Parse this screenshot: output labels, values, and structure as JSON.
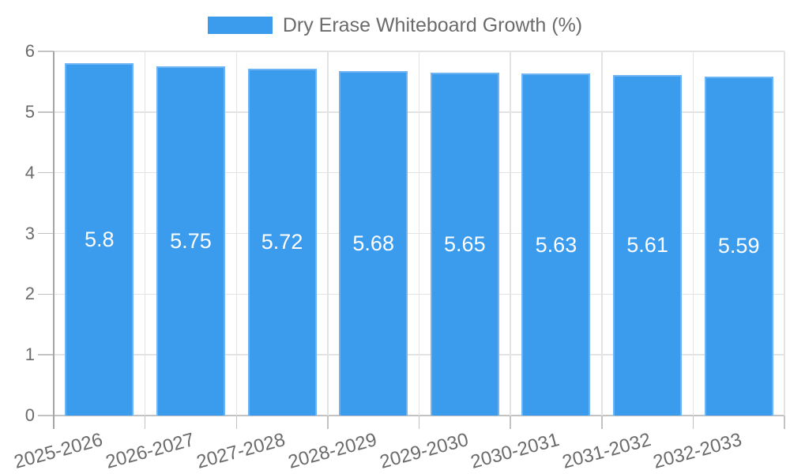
{
  "legend": {
    "label": "Dry Erase Whiteboard Growth (%)"
  },
  "chart_data": {
    "type": "bar",
    "title": "Dry Erase Whiteboard Growth (%)",
    "legend_position": "top",
    "categories": [
      "2025-2026",
      "2026-2027",
      "2027-2028",
      "2028-2029",
      "2029-2030",
      "2030-2031",
      "2031-2032",
      "2032-2033"
    ],
    "values": [
      5.8,
      5.75,
      5.72,
      5.68,
      5.65,
      5.63,
      5.61,
      5.59
    ],
    "value_labels": [
      "5.8",
      "5.75",
      "5.72",
      "5.68",
      "5.65",
      "5.63",
      "5.61",
      "5.59"
    ],
    "xlabel": "",
    "ylabel": "",
    "ylim": [
      0,
      6
    ],
    "yticks": [
      0,
      1,
      2,
      3,
      4,
      5,
      6
    ],
    "grid": true,
    "colors": {
      "bar_fill": "#3b9cee",
      "bar_border": "#6fb4f2",
      "grid_line": "#e3e3e3",
      "tick_line": "#c2c2c2",
      "axis_line": "#a5a5a5",
      "axis_text": "#6b6b6b",
      "legend_text": "#6b6b6b",
      "value_text": "#ffffff",
      "background": "#ffffff"
    }
  }
}
